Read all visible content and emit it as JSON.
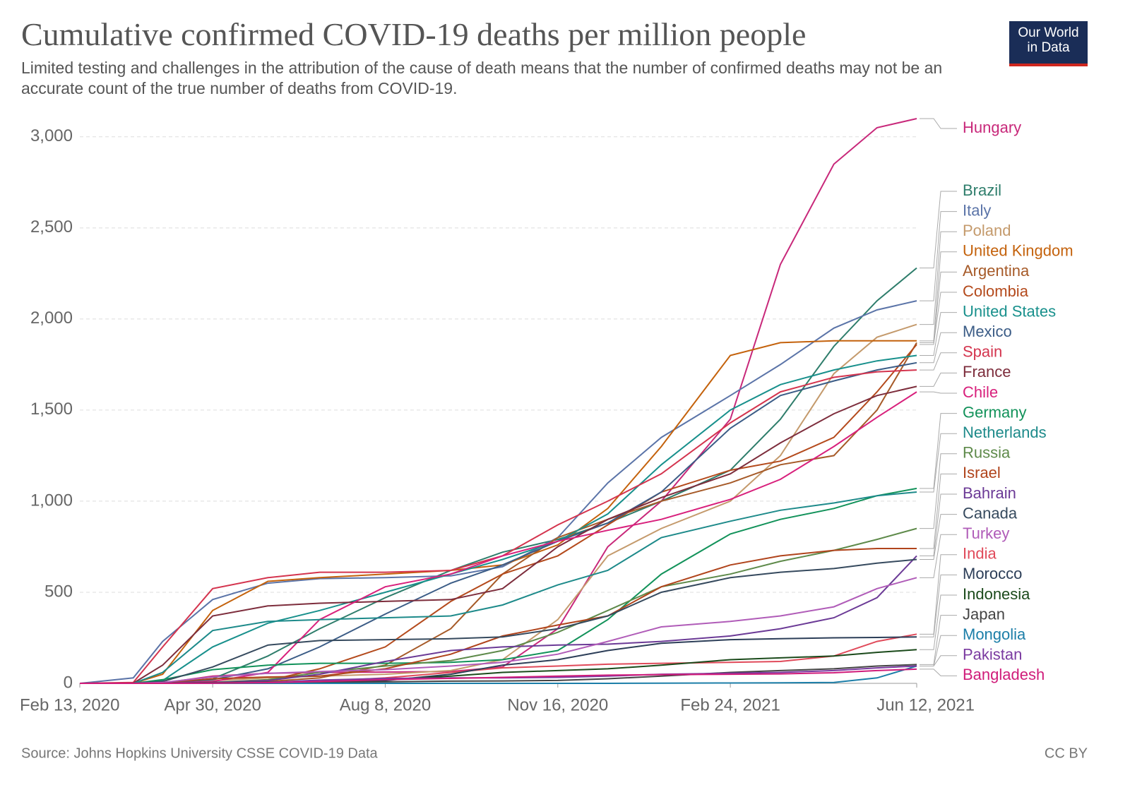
{
  "chart_data": {
    "type": "line",
    "title": "Cumulative confirmed COVID-19 deaths per million people",
    "subtitle": "Limited testing and challenges in the attribution of the cause of death means that the number of confirmed deaths may not be an accurate count of the true number of deaths from COVID-19.",
    "source": "Source: Johns Hopkins University CSSE COVID-19 Data",
    "license": "CC BY",
    "logo_lines": [
      "Our World",
      "in Data"
    ],
    "x": [
      "2020-02-13",
      "2020-03-15",
      "2020-04-01",
      "2020-04-30",
      "2020-06-01",
      "2020-07-01",
      "2020-08-08",
      "2020-09-15",
      "2020-10-15",
      "2020-11-16",
      "2020-12-15",
      "2021-01-15",
      "2021-02-24",
      "2021-03-25",
      "2021-04-25",
      "2021-05-20",
      "2021-06-12"
    ],
    "xlim": [
      "2020-02-13",
      "2021-06-12"
    ],
    "xticks": [
      {
        "value": "2020-02-13",
        "label": "Feb 13, 2020"
      },
      {
        "value": "2020-04-30",
        "label": "Apr 30, 2020"
      },
      {
        "value": "2020-08-08",
        "label": "Aug 8, 2020"
      },
      {
        "value": "2020-11-16",
        "label": "Nov 16, 2020"
      },
      {
        "value": "2021-02-24",
        "label": "Feb 24, 2021"
      },
      {
        "value": "2021-06-12",
        "label": "Jun 12, 2021"
      }
    ],
    "ylim": [
      0,
      3100
    ],
    "yticks": [
      0,
      500,
      {
        "value": 1000,
        "label": "1,000"
      },
      {
        "value": 1500,
        "label": "1,500"
      },
      {
        "value": 2000,
        "label": "2,000"
      },
      {
        "value": 2500,
        "label": "2,500"
      },
      {
        "value": 3000,
        "label": "3,000"
      }
    ],
    "grid": true,
    "series": [
      {
        "name": "Hungary",
        "color": "#c8287a",
        "values": [
          0,
          0,
          2,
          40,
          55,
          60,
          62,
          65,
          90,
          300,
          750,
          1000,
          1450,
          2300,
          2850,
          3050,
          3100
        ]
      },
      {
        "name": "Brazil",
        "color": "#2e7d6b",
        "values": [
          0,
          0,
          0,
          25,
          150,
          300,
          470,
          620,
          720,
          790,
          880,
          1000,
          1170,
          1450,
          1850,
          2100,
          2280
        ]
      },
      {
        "name": "Italy",
        "color": "#5b74a8",
        "values": [
          0,
          30,
          230,
          460,
          550,
          575,
          580,
          590,
          640,
          800,
          1100,
          1350,
          1580,
          1750,
          1950,
          2050,
          2100
        ]
      },
      {
        "name": "Poland",
        "color": "#c49a6c",
        "values": [
          0,
          0,
          5,
          15,
          30,
          40,
          50,
          70,
          130,
          350,
          700,
          850,
          1000,
          1250,
          1700,
          1900,
          1970
        ]
      },
      {
        "name": "United Kingdom",
        "color": "#c4620c",
        "values": [
          0,
          0,
          50,
          400,
          560,
          580,
          600,
          620,
          650,
          760,
          960,
          1300,
          1800,
          1870,
          1880,
          1880,
          1880
        ]
      },
      {
        "name": "Argentina",
        "color": "#a65a28",
        "values": [
          0,
          0,
          0,
          5,
          10,
          30,
          100,
          300,
          600,
          800,
          900,
          1000,
          1100,
          1200,
          1250,
          1500,
          1870
        ]
      },
      {
        "name": "Colombia",
        "color": "#b44a1c",
        "values": [
          0,
          0,
          0,
          5,
          15,
          80,
          200,
          450,
          600,
          700,
          870,
          1050,
          1170,
          1220,
          1350,
          1600,
          1860
        ]
      },
      {
        "name": "United States",
        "color": "#18908c",
        "values": [
          0,
          0,
          15,
          200,
          330,
          400,
          500,
          600,
          680,
          780,
          930,
          1200,
          1500,
          1640,
          1720,
          1770,
          1800
        ]
      },
      {
        "name": "Mexico",
        "color": "#3b5c86",
        "values": [
          0,
          0,
          2,
          20,
          80,
          200,
          380,
          550,
          650,
          780,
          880,
          1050,
          1400,
          1580,
          1660,
          1720,
          1760
        ]
      },
      {
        "name": "Spain",
        "color": "#d4344e",
        "values": [
          0,
          5,
          200,
          520,
          580,
          610,
          610,
          620,
          700,
          870,
          1000,
          1150,
          1430,
          1600,
          1680,
          1710,
          1720
        ]
      },
      {
        "name": "France",
        "color": "#7d2d3c",
        "values": [
          0,
          1,
          100,
          370,
          425,
          440,
          450,
          460,
          520,
          750,
          900,
          1020,
          1150,
          1320,
          1480,
          1580,
          1630
        ]
      },
      {
        "name": "Chile",
        "color": "#d8207c",
        "values": [
          0,
          0,
          0,
          10,
          60,
          350,
          530,
          600,
          700,
          780,
          840,
          900,
          1010,
          1120,
          1300,
          1460,
          1600
        ]
      },
      {
        "name": "Germany",
        "color": "#12925a",
        "values": [
          0,
          0,
          20,
          75,
          100,
          110,
          110,
          115,
          130,
          180,
          350,
          600,
          820,
          900,
          960,
          1030,
          1070
        ]
      },
      {
        "name": "Netherlands",
        "color": "#1d8a8a",
        "values": [
          0,
          0,
          60,
          290,
          340,
          350,
          360,
          370,
          430,
          540,
          620,
          800,
          890,
          950,
          990,
          1030,
          1050
        ]
      },
      {
        "name": "Russia",
        "color": "#5e8a4a",
        "values": [
          0,
          0,
          0,
          5,
          20,
          60,
          95,
          125,
          180,
          280,
          400,
          530,
          600,
          670,
          730,
          790,
          850
        ]
      },
      {
        "name": "Israel",
        "color": "#b0441c",
        "values": [
          0,
          0,
          5,
          25,
          35,
          40,
          80,
          160,
          260,
          320,
          370,
          530,
          650,
          700,
          730,
          740,
          740
        ]
      },
      {
        "name": "Bahrain",
        "color": "#6b3a96",
        "values": [
          0,
          0,
          2,
          5,
          15,
          50,
          120,
          180,
          200,
          210,
          215,
          230,
          260,
          300,
          360,
          470,
          700
        ]
      },
      {
        "name": "Canada",
        "color": "#364a5e",
        "values": [
          0,
          0,
          10,
          90,
          210,
          235,
          240,
          245,
          255,
          300,
          370,
          500,
          580,
          610,
          630,
          660,
          680
        ]
      },
      {
        "name": "Turkey",
        "color": "#b05cb8",
        "values": [
          0,
          0,
          5,
          35,
          55,
          65,
          75,
          95,
          115,
          160,
          230,
          310,
          340,
          370,
          420,
          520,
          580
        ]
      },
      {
        "name": "India",
        "color": "#e04a5a",
        "values": [
          0,
          0,
          0,
          1,
          3,
          10,
          30,
          60,
          85,
          95,
          105,
          110,
          115,
          120,
          150,
          230,
          270
        ]
      },
      {
        "name": "Morocco",
        "color": "#2c3e58",
        "values": [
          0,
          0,
          0,
          5,
          6,
          7,
          15,
          50,
          100,
          130,
          180,
          220,
          240,
          245,
          250,
          252,
          255
        ]
      },
      {
        "name": "Indonesia",
        "color": "#1b4a1b",
        "values": [
          0,
          0,
          0,
          3,
          6,
          10,
          20,
          40,
          60,
          70,
          80,
          100,
          130,
          140,
          150,
          170,
          185
        ]
      },
      {
        "name": "Japan",
        "color": "#444444",
        "values": [
          0,
          0,
          0,
          4,
          7,
          7,
          8,
          12,
          13,
          16,
          25,
          40,
          60,
          70,
          80,
          95,
          103
        ]
      },
      {
        "name": "Mongolia",
        "color": "#1c7ea8",
        "values": [
          0,
          0,
          0,
          0,
          0,
          0,
          0,
          0,
          0,
          0,
          0,
          1,
          2,
          3,
          5,
          30,
          95
        ]
      },
      {
        "name": "Pakistan",
        "color": "#7a3aa0",
        "values": [
          0,
          0,
          0,
          1,
          5,
          18,
          27,
          30,
          30,
          33,
          40,
          50,
          55,
          60,
          70,
          85,
          95
        ]
      },
      {
        "name": "Bangladesh",
        "color": "#d01c7a",
        "values": [
          0,
          0,
          0,
          1,
          4,
          10,
          20,
          27,
          33,
          40,
          45,
          48,
          50,
          52,
          58,
          70,
          78
        ]
      }
    ]
  }
}
